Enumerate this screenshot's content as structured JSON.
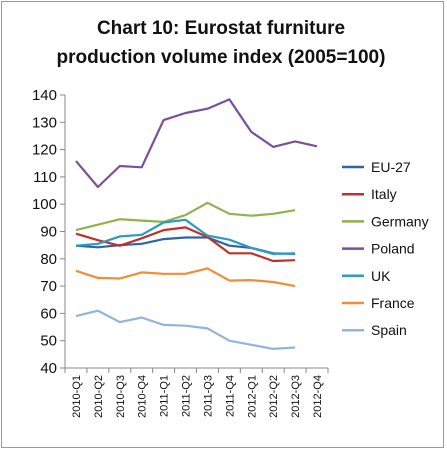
{
  "chart_data": {
    "type": "line",
    "title": "Chart 10: Eurostat furniture production volume index (2005=100)",
    "title_lines": [
      "Chart 10: Eurostat furniture",
      "production volume index (2005=100)"
    ],
    "xlabel": "",
    "ylabel": "",
    "ylim": [
      40,
      140
    ],
    "yticks": [
      40,
      50,
      60,
      70,
      80,
      90,
      100,
      110,
      120,
      130,
      140
    ],
    "grid": false,
    "legend": "right",
    "categories": [
      "2010-Q1",
      "2010-Q2",
      "2010-Q3",
      "2010-Q4",
      "2011-Q1",
      "2011-Q2",
      "2011-Q3",
      "2011-Q4",
      "2012-Q1",
      "2012-Q2",
      "2012-Q3",
      "2012-Q4"
    ],
    "series": [
      {
        "name": "EU-27",
        "color": "#2e65a6",
        "values": [
          84.8,
          84.2,
          85.0,
          85.5,
          87.2,
          87.8,
          87.8,
          84.8,
          84.0,
          82.0,
          81.8,
          null
        ]
      },
      {
        "name": "Italy",
        "color": "#c0302a",
        "values": [
          89.2,
          86.8,
          84.8,
          87.5,
          90.5,
          91.5,
          88.0,
          82.0,
          82.0,
          79.2,
          79.5,
          null
        ]
      },
      {
        "name": "Germany",
        "color": "#8db34a",
        "values": [
          90.5,
          92.5,
          94.5,
          94.0,
          93.5,
          96.0,
          100.5,
          96.5,
          95.8,
          96.5,
          97.8,
          null
        ]
      },
      {
        "name": "Poland",
        "color": "#7a4f9e",
        "values": [
          115.8,
          106.3,
          114.0,
          113.5,
          130.8,
          133.4,
          135.0,
          138.4,
          126.5,
          121.0,
          123.0,
          121.2
        ]
      },
      {
        "name": "UK",
        "color": "#2b9bc1",
        "values": [
          84.8,
          85.5,
          88.2,
          88.8,
          93.3,
          94.3,
          88.5,
          87.0,
          84.0,
          81.8,
          82.0,
          null
        ]
      },
      {
        "name": "France",
        "color": "#f08d35",
        "values": [
          75.6,
          73.0,
          72.8,
          75.0,
          74.5,
          74.5,
          76.5,
          72.0,
          72.2,
          71.5,
          70.0,
          null
        ]
      },
      {
        "name": "Spain",
        "color": "#93b4da",
        "values": [
          59.0,
          61.0,
          56.8,
          58.5,
          55.8,
          55.5,
          54.5,
          50.0,
          48.5,
          47.0,
          47.5,
          null
        ]
      }
    ]
  }
}
